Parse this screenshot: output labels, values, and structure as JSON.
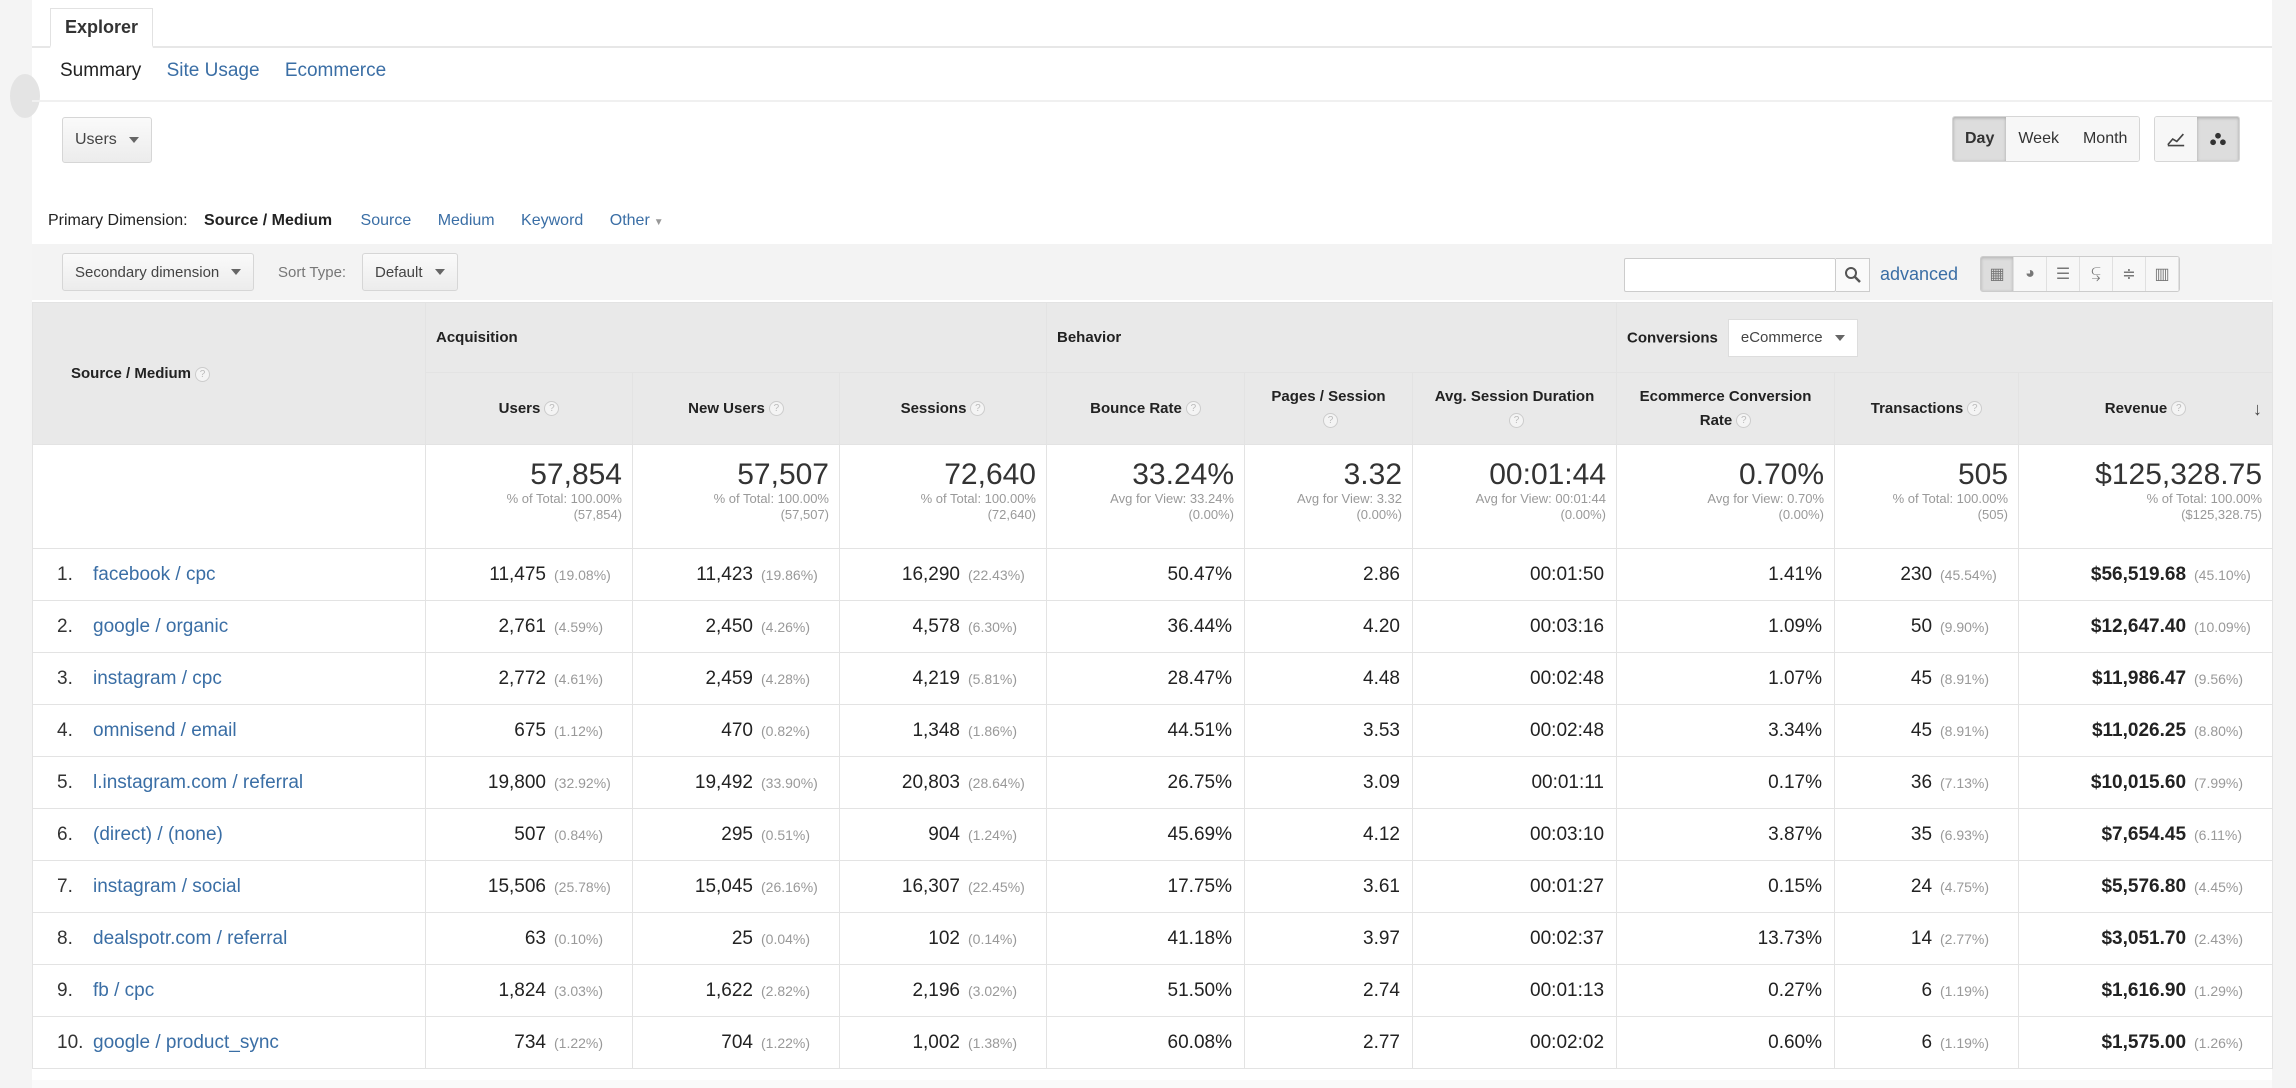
{
  "tabs": {
    "explorer": "Explorer"
  },
  "subtabs": [
    "Summary",
    "Site Usage",
    "Ecommerce"
  ],
  "metric_select": "Users",
  "periods": [
    "Day",
    "Week",
    "Month"
  ],
  "primary_dimension": {
    "label": "Primary Dimension:",
    "active": "Source / Medium",
    "links": [
      "Source",
      "Medium",
      "Keyword",
      "Other"
    ]
  },
  "controls": {
    "secondary": "Secondary dimension",
    "sort_label": "Sort Type:",
    "sort_value": "Default",
    "advanced": "advanced"
  },
  "groups": {
    "acquisition": "Acquisition",
    "behavior": "Behavior",
    "conversions": "Conversions",
    "conv_select": "eCommerce"
  },
  "columns": {
    "source": "Source / Medium",
    "users": "Users",
    "new_users": "New Users",
    "sessions": "Sessions",
    "bounce": "Bounce Rate",
    "pages": "Pages / Session",
    "duration": "Avg. Session Duration",
    "conv_rate": "Ecommerce Conversion Rate",
    "transactions": "Transactions",
    "revenue": "Revenue"
  },
  "totals": {
    "users": {
      "v": "57,854",
      "l1": "% of Total: 100.00%",
      "l2": "(57,854)"
    },
    "new_users": {
      "v": "57,507",
      "l1": "% of Total: 100.00%",
      "l2": "(57,507)"
    },
    "sessions": {
      "v": "72,640",
      "l1": "% of Total: 100.00%",
      "l2": "(72,640)"
    },
    "bounce": {
      "v": "33.24%",
      "l1": "Avg for View: 33.24%",
      "l2": "(0.00%)"
    },
    "pages": {
      "v": "3.32",
      "l1": "Avg for View: 3.32",
      "l2": "(0.00%)"
    },
    "duration": {
      "v": "00:01:44",
      "l1": "Avg for View: 00:01:44",
      "l2": "(0.00%)"
    },
    "conv_rate": {
      "v": "0.70%",
      "l1": "Avg for View: 0.70%",
      "l2": "(0.00%)"
    },
    "transactions": {
      "v": "505",
      "l1": "% of Total: 100.00%",
      "l2": "(505)"
    },
    "revenue": {
      "v": "$125,328.75",
      "l1": "% of Total: 100.00%",
      "l2": "($125,328.75)"
    }
  },
  "rows": [
    {
      "n": "1.",
      "src": "facebook / cpc",
      "u": "11,475",
      "up": "(19.08%)",
      "nu": "11,423",
      "nup": "(19.86%)",
      "s": "16,290",
      "sp": "(22.43%)",
      "br": "50.47%",
      "ps": "2.86",
      "d": "00:01:50",
      "cr": "1.41%",
      "t": "230",
      "tp": "(45.54%)",
      "r": "$56,519.68",
      "rp": "(45.10%)"
    },
    {
      "n": "2.",
      "src": "google / organic",
      "u": "2,761",
      "up": "(4.59%)",
      "nu": "2,450",
      "nup": "(4.26%)",
      "s": "4,578",
      "sp": "(6.30%)",
      "br": "36.44%",
      "ps": "4.20",
      "d": "00:03:16",
      "cr": "1.09%",
      "t": "50",
      "tp": "(9.90%)",
      "r": "$12,647.40",
      "rp": "(10.09%)"
    },
    {
      "n": "3.",
      "src": "instagram / cpc",
      "u": "2,772",
      "up": "(4.61%)",
      "nu": "2,459",
      "nup": "(4.28%)",
      "s": "4,219",
      "sp": "(5.81%)",
      "br": "28.47%",
      "ps": "4.48",
      "d": "00:02:48",
      "cr": "1.07%",
      "t": "45",
      "tp": "(8.91%)",
      "r": "$11,986.47",
      "rp": "(9.56%)"
    },
    {
      "n": "4.",
      "src": "omnisend / email",
      "u": "675",
      "up": "(1.12%)",
      "nu": "470",
      "nup": "(0.82%)",
      "s": "1,348",
      "sp": "(1.86%)",
      "br": "44.51%",
      "ps": "3.53",
      "d": "00:02:48",
      "cr": "3.34%",
      "t": "45",
      "tp": "(8.91%)",
      "r": "$11,026.25",
      "rp": "(8.80%)"
    },
    {
      "n": "5.",
      "src": "l.instagram.com / referral",
      "u": "19,800",
      "up": "(32.92%)",
      "nu": "19,492",
      "nup": "(33.90%)",
      "s": "20,803",
      "sp": "(28.64%)",
      "br": "26.75%",
      "ps": "3.09",
      "d": "00:01:11",
      "cr": "0.17%",
      "t": "36",
      "tp": "(7.13%)",
      "r": "$10,015.60",
      "rp": "(7.99%)"
    },
    {
      "n": "6.",
      "src": "(direct) / (none)",
      "u": "507",
      "up": "(0.84%)",
      "nu": "295",
      "nup": "(0.51%)",
      "s": "904",
      "sp": "(1.24%)",
      "br": "45.69%",
      "ps": "4.12",
      "d": "00:03:10",
      "cr": "3.87%",
      "t": "35",
      "tp": "(6.93%)",
      "r": "$7,654.45",
      "rp": "(6.11%)"
    },
    {
      "n": "7.",
      "src": "instagram / social",
      "u": "15,506",
      "up": "(25.78%)",
      "nu": "15,045",
      "nup": "(26.16%)",
      "s": "16,307",
      "sp": "(22.45%)",
      "br": "17.75%",
      "ps": "3.61",
      "d": "00:01:27",
      "cr": "0.15%",
      "t": "24",
      "tp": "(4.75%)",
      "r": "$5,576.80",
      "rp": "(4.45%)"
    },
    {
      "n": "8.",
      "src": "dealspotr.com / referral",
      "u": "63",
      "up": "(0.10%)",
      "nu": "25",
      "nup": "(0.04%)",
      "s": "102",
      "sp": "(0.14%)",
      "br": "41.18%",
      "ps": "3.97",
      "d": "00:02:37",
      "cr": "13.73%",
      "t": "14",
      "tp": "(2.77%)",
      "r": "$3,051.70",
      "rp": "(2.43%)"
    },
    {
      "n": "9.",
      "src": "fb / cpc",
      "u": "1,824",
      "up": "(3.03%)",
      "nu": "1,622",
      "nup": "(2.82%)",
      "s": "2,196",
      "sp": "(3.02%)",
      "br": "51.50%",
      "ps": "2.74",
      "d": "00:01:13",
      "cr": "0.27%",
      "t": "6",
      "tp": "(1.19%)",
      "r": "$1,616.90",
      "rp": "(1.29%)"
    },
    {
      "n": "10.",
      "src": "google / product_sync",
      "u": "734",
      "up": "(1.22%)",
      "nu": "704",
      "nup": "(1.22%)",
      "s": "1,002",
      "sp": "(1.38%)",
      "br": "60.08%",
      "ps": "2.77",
      "d": "00:02:02",
      "cr": "0.60%",
      "t": "6",
      "tp": "(1.19%)",
      "r": "$1,575.00",
      "rp": "(1.26%)"
    }
  ]
}
